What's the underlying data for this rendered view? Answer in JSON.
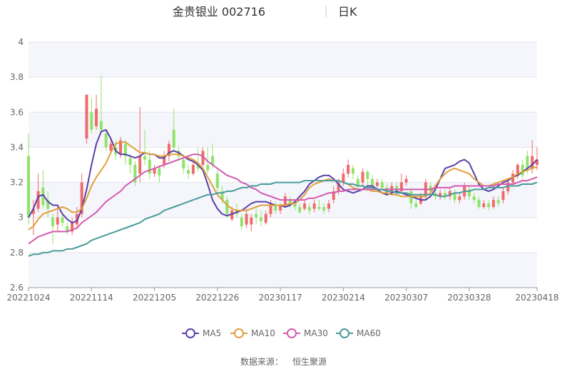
{
  "chart_data": {
    "type": "candlestick",
    "title": "金贵银业 002716",
    "period_label": "日K",
    "ylim": [
      2.6,
      4.0
    ],
    "y_ticks": [
      "2.6",
      "2.8",
      "3",
      "3.2",
      "3.4",
      "3.6",
      "3.8",
      "4"
    ],
    "x_ticks": [
      "20221024",
      "20221114",
      "20221205",
      "20221226",
      "20230117",
      "20230214",
      "20230307",
      "20230328",
      "20230418"
    ],
    "grid": true,
    "legend_position": "bottom",
    "up_color": "#ef6b6b",
    "down_color": "#8fe36a",
    "series": [
      {
        "name": "MA5",
        "color": "#5b3fa8",
        "values": [
          3.0,
          3.05,
          3.12,
          3.13,
          3.09,
          3.07,
          3.07,
          3.02,
          2.99,
          2.97,
          2.98,
          3.05,
          3.16,
          3.3,
          3.42,
          3.49,
          3.5,
          3.45,
          3.38,
          3.36,
          3.36,
          3.35,
          3.34,
          3.35,
          3.37,
          3.36,
          3.36,
          3.34,
          3.34,
          3.37,
          3.38,
          3.37,
          3.35,
          3.33,
          3.32,
          3.3,
          3.27,
          3.19,
          3.1,
          3.05,
          3.02,
          3.01,
          3.02,
          3.03,
          3.04,
          3.06,
          3.08,
          3.09,
          3.09,
          3.09,
          3.08,
          3.07,
          3.07,
          3.06,
          3.07,
          3.09,
          3.12,
          3.15,
          3.19,
          3.21,
          3.23,
          3.24,
          3.24,
          3.22,
          3.19,
          3.16,
          3.15,
          3.14,
          3.15,
          3.16,
          3.18,
          3.18,
          3.16,
          3.14,
          3.13,
          3.14,
          3.15,
          3.14,
          3.13,
          3.12,
          3.11,
          3.1,
          3.1,
          3.12,
          3.16,
          3.22,
          3.28,
          3.29,
          3.3,
          3.32,
          3.33,
          3.31,
          3.25,
          3.19,
          3.16,
          3.15,
          3.16,
          3.18,
          3.2,
          3.21,
          3.23,
          3.24,
          3.26,
          3.28,
          3.3,
          3.33
        ]
      },
      {
        "name": "MA10",
        "color": "#e0a03c",
        "values": [
          2.93,
          2.95,
          2.99,
          3.02,
          3.03,
          3.04,
          3.05,
          3.06,
          3.05,
          3.03,
          3.03,
          3.05,
          3.11,
          3.18,
          3.23,
          3.27,
          3.31,
          3.37,
          3.42,
          3.43,
          3.43,
          3.41,
          3.39,
          3.37,
          3.37,
          3.36,
          3.36,
          3.35,
          3.35,
          3.36,
          3.36,
          3.36,
          3.35,
          3.34,
          3.33,
          3.31,
          3.28,
          3.23,
          3.18,
          3.13,
          3.1,
          3.07,
          3.05,
          3.04,
          3.04,
          3.04,
          3.05,
          3.06,
          3.07,
          3.07,
          3.07,
          3.07,
          3.07,
          3.07,
          3.08,
          3.08,
          3.1,
          3.13,
          3.17,
          3.19,
          3.2,
          3.21,
          3.22,
          3.21,
          3.21,
          3.2,
          3.19,
          3.17,
          3.16,
          3.16,
          3.16,
          3.15,
          3.15,
          3.14,
          3.14,
          3.13,
          3.13,
          3.12,
          3.12,
          3.12,
          3.12,
          3.12,
          3.12,
          3.14,
          3.18,
          3.22,
          3.25,
          3.27,
          3.28,
          3.27,
          3.26,
          3.25,
          3.22,
          3.2,
          3.18,
          3.18,
          3.19,
          3.2,
          3.21,
          3.22,
          3.23,
          3.25,
          3.26,
          3.27,
          3.28,
          3.29
        ]
      },
      {
        "name": "MA30",
        "color": "#d45ab0",
        "values": [
          2.85,
          2.87,
          2.89,
          2.9,
          2.91,
          2.92,
          2.92,
          2.92,
          2.92,
          2.93,
          2.94,
          2.97,
          2.99,
          3.01,
          3.03,
          3.06,
          3.09,
          3.11,
          3.13,
          3.15,
          3.18,
          3.2,
          3.22,
          3.24,
          3.26,
          3.27,
          3.28,
          3.29,
          3.3,
          3.31,
          3.32,
          3.33,
          3.34,
          3.35,
          3.36,
          3.36,
          3.35,
          3.32,
          3.3,
          3.28,
          3.26,
          3.24,
          3.23,
          3.22,
          3.2,
          3.19,
          3.17,
          3.16,
          3.14,
          3.13,
          3.12,
          3.11,
          3.1,
          3.1,
          3.1,
          3.1,
          3.1,
          3.1,
          3.11,
          3.11,
          3.12,
          3.13,
          3.14,
          3.14,
          3.15,
          3.15,
          3.16,
          3.16,
          3.16,
          3.16,
          3.16,
          3.16,
          3.16,
          3.16,
          3.16,
          3.16,
          3.16,
          3.16,
          3.16,
          3.16,
          3.16,
          3.16,
          3.16,
          3.16,
          3.17,
          3.17,
          3.17,
          3.17,
          3.18,
          3.18,
          3.18,
          3.18,
          3.18,
          3.18,
          3.18,
          3.18,
          3.18,
          3.19,
          3.19,
          3.19,
          3.19,
          3.2,
          3.21,
          3.21,
          3.22,
          3.23
        ]
      },
      {
        "name": "MA60",
        "color": "#4a9b9b",
        "values": [
          2.78,
          2.79,
          2.79,
          2.8,
          2.8,
          2.81,
          2.81,
          2.81,
          2.82,
          2.82,
          2.83,
          2.84,
          2.85,
          2.87,
          2.88,
          2.89,
          2.9,
          2.91,
          2.92,
          2.93,
          2.94,
          2.95,
          2.96,
          2.97,
          2.99,
          3.0,
          3.01,
          3.02,
          3.04,
          3.05,
          3.06,
          3.07,
          3.08,
          3.09,
          3.1,
          3.11,
          3.12,
          3.13,
          3.13,
          3.14,
          3.14,
          3.15,
          3.15,
          3.16,
          3.17,
          3.17,
          3.18,
          3.18,
          3.19,
          3.19,
          3.19,
          3.2,
          3.2,
          3.2,
          3.2,
          3.2,
          3.2,
          3.21,
          3.21,
          3.21,
          3.21,
          3.21,
          3.21,
          3.21,
          3.21,
          3.2,
          3.19,
          3.19,
          3.18,
          3.18,
          3.17,
          3.17,
          3.16,
          3.16,
          3.15,
          3.15,
          3.14,
          3.14,
          3.14,
          3.13,
          3.13,
          3.13,
          3.13,
          3.13,
          3.13,
          3.12,
          3.12,
          3.13,
          3.14,
          3.14,
          3.15,
          3.15,
          3.16,
          3.16,
          3.16,
          3.17,
          3.17,
          3.17,
          3.17,
          3.18,
          3.18,
          3.18,
          3.19,
          3.19,
          3.19,
          3.2
        ]
      }
    ],
    "candles": [
      {
        "o": 3.35,
        "c": 3.0,
        "h": 3.48,
        "l": 2.96
      },
      {
        "o": 3.02,
        "c": 3.05,
        "h": 3.1,
        "l": 2.9
      },
      {
        "o": 3.05,
        "c": 3.15,
        "h": 3.25,
        "l": 3.03
      },
      {
        "o": 3.17,
        "c": 3.07,
        "h": 3.27,
        "l": 3.05
      },
      {
        "o": 3.1,
        "c": 3.05,
        "h": 3.15,
        "l": 3.0
      },
      {
        "o": 3.0,
        "c": 2.95,
        "h": 3.02,
        "l": 2.85
      },
      {
        "o": 2.96,
        "c": 3.0,
        "h": 3.06,
        "l": 2.92
      },
      {
        "o": 3.0,
        "c": 2.97,
        "h": 3.03,
        "l": 2.95
      },
      {
        "o": 2.95,
        "c": 2.92,
        "h": 2.97,
        "l": 2.9
      },
      {
        "o": 2.92,
        "c": 2.97,
        "h": 3.0,
        "l": 2.9
      },
      {
        "o": 2.96,
        "c": 3.02,
        "h": 3.06,
        "l": 2.94
      },
      {
        "o": 3.02,
        "c": 3.2,
        "h": 3.25,
        "l": 3.0
      },
      {
        "o": 3.45,
        "c": 3.7,
        "h": 3.7,
        "l": 3.42
      },
      {
        "o": 3.6,
        "c": 3.5,
        "h": 3.68,
        "l": 3.48
      },
      {
        "o": 3.52,
        "c": 3.62,
        "h": 3.7,
        "l": 3.5
      },
      {
        "o": 3.55,
        "c": 3.5,
        "h": 3.81,
        "l": 3.48
      },
      {
        "o": 3.48,
        "c": 3.4,
        "h": 3.5,
        "l": 3.38
      },
      {
        "o": 3.38,
        "c": 3.42,
        "h": 3.45,
        "l": 3.36
      },
      {
        "o": 3.4,
        "c": 3.36,
        "h": 3.44,
        "l": 3.33
      },
      {
        "o": 3.36,
        "c": 3.44,
        "h": 3.46,
        "l": 3.34
      },
      {
        "o": 3.42,
        "c": 3.35,
        "h": 3.44,
        "l": 3.3
      },
      {
        "o": 3.34,
        "c": 3.3,
        "h": 3.36,
        "l": 3.25
      },
      {
        "o": 3.3,
        "c": 3.2,
        "h": 3.32,
        "l": 3.18
      },
      {
        "o": 3.25,
        "c": 3.35,
        "h": 3.63,
        "l": 3.2
      },
      {
        "o": 3.35,
        "c": 3.33,
        "h": 3.5,
        "l": 3.3
      },
      {
        "o": 3.33,
        "c": 3.25,
        "h": 3.38,
        "l": 3.22
      },
      {
        "o": 3.25,
        "c": 3.28,
        "h": 3.3,
        "l": 3.23
      },
      {
        "o": 3.28,
        "c": 3.24,
        "h": 3.3,
        "l": 3.2
      },
      {
        "o": 3.3,
        "c": 3.35,
        "h": 3.38,
        "l": 3.28
      },
      {
        "o": 3.35,
        "c": 3.42,
        "h": 3.44,
        "l": 3.32
      },
      {
        "o": 3.5,
        "c": 3.4,
        "h": 3.62,
        "l": 3.38
      },
      {
        "o": 3.38,
        "c": 3.35,
        "h": 3.4,
        "l": 3.32
      },
      {
        "o": 3.33,
        "c": 3.28,
        "h": 3.36,
        "l": 3.25
      },
      {
        "o": 3.27,
        "c": 3.25,
        "h": 3.3,
        "l": 3.22
      },
      {
        "o": 3.25,
        "c": 3.3,
        "h": 3.32,
        "l": 3.24
      },
      {
        "o": 3.3,
        "c": 3.28,
        "h": 3.4,
        "l": 3.26
      },
      {
        "o": 3.3,
        "c": 3.38,
        "h": 3.4,
        "l": 3.29
      },
      {
        "o": 3.3,
        "c": 3.27,
        "h": 3.4,
        "l": 3.25
      },
      {
        "o": 3.35,
        "c": 3.3,
        "h": 3.42,
        "l": 3.28
      },
      {
        "o": 3.25,
        "c": 3.17,
        "h": 3.27,
        "l": 3.15
      },
      {
        "o": 3.15,
        "c": 3.1,
        "h": 3.18,
        "l": 3.08
      },
      {
        "o": 3.1,
        "c": 3.02,
        "h": 3.12,
        "l": 3.0
      },
      {
        "o": 2.99,
        "c": 3.04,
        "h": 3.06,
        "l": 2.98
      },
      {
        "o": 3.04,
        "c": 3.02,
        "h": 3.08,
        "l": 3.0
      },
      {
        "o": 3.0,
        "c": 2.95,
        "h": 3.02,
        "l": 2.93
      },
      {
        "o": 2.96,
        "c": 3.02,
        "h": 3.05,
        "l": 2.94
      },
      {
        "o": 2.96,
        "c": 3.0,
        "h": 3.02,
        "l": 2.92
      },
      {
        "o": 3.02,
        "c": 3.0,
        "h": 3.05,
        "l": 2.96
      },
      {
        "o": 3.0,
        "c": 2.98,
        "h": 3.04,
        "l": 2.95
      },
      {
        "o": 2.97,
        "c": 3.02,
        "h": 3.04,
        "l": 2.96
      },
      {
        "o": 3.02,
        "c": 3.08,
        "h": 3.1,
        "l": 3.0
      },
      {
        "o": 3.07,
        "c": 3.04,
        "h": 3.09,
        "l": 3.02
      },
      {
        "o": 3.04,
        "c": 3.07,
        "h": 3.08,
        "l": 3.02
      },
      {
        "o": 3.07,
        "c": 3.12,
        "h": 3.14,
        "l": 3.06
      },
      {
        "o": 3.1,
        "c": 3.07,
        "h": 3.12,
        "l": 3.05
      },
      {
        "o": 3.08,
        "c": 3.06,
        "h": 3.1,
        "l": 3.04
      },
      {
        "o": 3.06,
        "c": 3.03,
        "h": 3.08,
        "l": 3.02
      },
      {
        "o": 3.05,
        "c": 3.08,
        "h": 3.1,
        "l": 3.04
      },
      {
        "o": 3.06,
        "c": 3.04,
        "h": 3.08,
        "l": 3.02
      },
      {
        "o": 3.05,
        "c": 3.08,
        "h": 3.1,
        "l": 3.03
      },
      {
        "o": 3.06,
        "c": 3.05,
        "h": 3.1,
        "l": 3.04
      },
      {
        "o": 3.06,
        "c": 3.04,
        "h": 3.08,
        "l": 3.02
      },
      {
        "o": 3.05,
        "c": 3.08,
        "h": 3.1,
        "l": 3.03
      },
      {
        "o": 3.1,
        "c": 3.15,
        "h": 3.18,
        "l": 3.08
      },
      {
        "o": 3.15,
        "c": 3.2,
        "h": 3.22,
        "l": 3.13
      },
      {
        "o": 3.2,
        "c": 3.25,
        "h": 3.28,
        "l": 3.18
      },
      {
        "o": 3.25,
        "c": 3.3,
        "h": 3.33,
        "l": 3.23
      },
      {
        "o": 3.28,
        "c": 3.25,
        "h": 3.3,
        "l": 3.22
      },
      {
        "o": 3.22,
        "c": 3.18,
        "h": 3.24,
        "l": 3.16
      },
      {
        "o": 3.2,
        "c": 3.26,
        "h": 3.28,
        "l": 3.18
      },
      {
        "o": 3.26,
        "c": 3.22,
        "h": 3.27,
        "l": 3.15
      },
      {
        "o": 3.22,
        "c": 3.18,
        "h": 3.24,
        "l": 3.16
      },
      {
        "o": 3.18,
        "c": 3.2,
        "h": 3.22,
        "l": 3.16
      },
      {
        "o": 3.2,
        "c": 3.17,
        "h": 3.22,
        "l": 3.15
      },
      {
        "o": 3.17,
        "c": 3.14,
        "h": 3.19,
        "l": 3.12
      },
      {
        "o": 3.14,
        "c": 3.18,
        "h": 3.2,
        "l": 3.13
      },
      {
        "o": 3.18,
        "c": 3.15,
        "h": 3.2,
        "l": 3.12
      },
      {
        "o": 3.15,
        "c": 3.2,
        "h": 3.25,
        "l": 3.14
      },
      {
        "o": 3.2,
        "c": 3.22,
        "h": 3.24,
        "l": 3.18
      },
      {
        "o": 3.15,
        "c": 3.08,
        "h": 3.17,
        "l": 3.05
      },
      {
        "o": 3.08,
        "c": 3.06,
        "h": 3.12,
        "l": 3.05
      },
      {
        "o": 3.08,
        "c": 3.12,
        "h": 3.14,
        "l": 3.07
      },
      {
        "o": 3.12,
        "c": 3.2,
        "h": 3.22,
        "l": 3.1
      },
      {
        "o": 3.18,
        "c": 3.15,
        "h": 3.2,
        "l": 3.13
      },
      {
        "o": 3.14,
        "c": 3.12,
        "h": 3.16,
        "l": 3.1
      },
      {
        "o": 3.12,
        "c": 3.14,
        "h": 3.16,
        "l": 3.1
      },
      {
        "o": 3.14,
        "c": 3.12,
        "h": 3.16,
        "l": 3.1
      },
      {
        "o": 3.12,
        "c": 3.15,
        "h": 3.17,
        "l": 3.1
      },
      {
        "o": 3.14,
        "c": 3.1,
        "h": 3.16,
        "l": 3.08
      },
      {
        "o": 3.1,
        "c": 3.12,
        "h": 3.14,
        "l": 3.08
      },
      {
        "o": 3.12,
        "c": 3.18,
        "h": 3.2,
        "l": 3.1
      },
      {
        "o": 3.16,
        "c": 3.12,
        "h": 3.18,
        "l": 3.1
      },
      {
        "o": 3.12,
        "c": 3.1,
        "h": 3.14,
        "l": 3.08
      },
      {
        "o": 3.1,
        "c": 3.06,
        "h": 3.12,
        "l": 3.05
      },
      {
        "o": 3.06,
        "c": 3.08,
        "h": 3.1,
        "l": 3.05
      },
      {
        "o": 3.08,
        "c": 3.06,
        "h": 3.1,
        "l": 3.04
      },
      {
        "o": 3.06,
        "c": 3.1,
        "h": 3.12,
        "l": 3.05
      },
      {
        "o": 3.1,
        "c": 3.08,
        "h": 3.12,
        "l": 3.06
      },
      {
        "o": 3.1,
        "c": 3.15,
        "h": 3.17,
        "l": 3.08
      },
      {
        "o": 3.15,
        "c": 3.2,
        "h": 3.22,
        "l": 3.13
      },
      {
        "o": 3.2,
        "c": 3.25,
        "h": 3.27,
        "l": 3.18
      },
      {
        "o": 3.25,
        "c": 3.3,
        "h": 3.31,
        "l": 3.22
      },
      {
        "o": 3.3,
        "c": 3.24,
        "h": 3.33,
        "l": 3.22
      },
      {
        "o": 3.35,
        "c": 3.28,
        "h": 3.38,
        "l": 3.25
      },
      {
        "o": 3.28,
        "c": 3.35,
        "h": 3.44,
        "l": 3.25
      },
      {
        "o": 3.3,
        "c": 3.33,
        "h": 3.4,
        "l": 3.27
      }
    ],
    "x_tick_indices": [
      0,
      13,
      26,
      39,
      52,
      65,
      78,
      91,
      105
    ]
  },
  "legend": {
    "items": [
      {
        "label": "MA5",
        "color": "#5b3fa8"
      },
      {
        "label": "MA10",
        "color": "#e0a03c"
      },
      {
        "label": "MA30",
        "color": "#d45ab0"
      },
      {
        "label": "MA60",
        "color": "#4a9b9b"
      }
    ]
  },
  "footer": {
    "source_label": "数据来源：",
    "source_value": "恒生聚源"
  }
}
